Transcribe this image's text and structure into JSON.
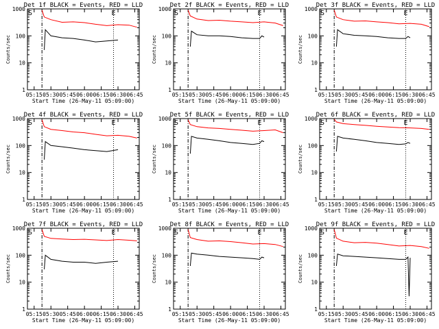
{
  "colors": {
    "events": "#000000",
    "lld": "#ff0000",
    "axes": "#000000",
    "background": "#ffffff"
  },
  "chart_data": [
    {
      "type": "line",
      "title": "Det 1f BLACK = Events, RED = LLD",
      "ylabel": "Counts/sec",
      "xlabel": "Start Time (26-May-11 05:09:00)",
      "x_ticks": [
        "05:15",
        "05:30",
        "05:45",
        "06:00",
        "06:15",
        "06:30",
        "06:45"
      ],
      "y_ticks": [
        "1",
        "10",
        "100",
        "1000"
      ],
      "yscale": "log",
      "ylim": [
        1,
        1000
      ],
      "xlim": [
        "05:09",
        "06:49"
      ],
      "markers": [
        {
          "label": "S",
          "time": "05:09"
        },
        {
          "label": "E",
          "time": "06:26"
        }
      ],
      "dash_dot_line": "05:22",
      "dotted_lines": [
        "06:26"
      ],
      "series": [
        {
          "name": "Events",
          "color": "#000000",
          "times": [
            "05:24",
            "05:25",
            "05:30",
            "05:40",
            "05:50",
            "06:00",
            "06:10",
            "06:20",
            "06:30"
          ],
          "values": [
            30,
            170,
            100,
            85,
            80,
            70,
            60,
            65,
            70
          ]
        },
        {
          "name": "LLD",
          "color": "#ff0000",
          "times": [
            "05:22",
            "05:24",
            "05:30",
            "05:40",
            "05:50",
            "06:00",
            "06:10",
            "06:20",
            "06:30",
            "06:40",
            "06:47"
          ],
          "values": [
            900,
            500,
            400,
            320,
            330,
            310,
            270,
            240,
            260,
            250,
            210
          ]
        }
      ]
    },
    {
      "type": "line",
      "title": "Det 2f BLACK = Events, RED = LLD",
      "ylabel": "Counts/sec",
      "xlabel": "Start Time (26-May-11 05:09:00)",
      "x_ticks": [
        "05:15",
        "05:30",
        "05:45",
        "06:00",
        "06:15",
        "06:30",
        "06:45"
      ],
      "y_ticks": [
        "1",
        "10",
        "100",
        "1000"
      ],
      "yscale": "log",
      "ylim": [
        1,
        1000
      ],
      "xlim": [
        "05:09",
        "06:49"
      ],
      "markers": [
        {
          "label": "S",
          "time": "05:09"
        },
        {
          "label": "E",
          "time": "06:26"
        }
      ],
      "dash_dot_line": "05:22",
      "dotted_lines": [
        "06:26"
      ],
      "series": [
        {
          "name": "Events",
          "color": "#000000",
          "times": [
            "05:24",
            "05:25",
            "05:30",
            "05:40",
            "05:50",
            "06:00",
            "06:10",
            "06:20",
            "06:26",
            "06:28",
            "06:30"
          ],
          "values": [
            40,
            150,
            110,
            100,
            100,
            95,
            85,
            80,
            80,
            100,
            90
          ]
        },
        {
          "name": "LLD",
          "color": "#ff0000",
          "times": [
            "05:22",
            "05:24",
            "05:30",
            "05:40",
            "05:50",
            "06:00",
            "06:10",
            "06:20",
            "06:30",
            "06:40",
            "06:47"
          ],
          "values": [
            900,
            550,
            420,
            370,
            380,
            350,
            330,
            310,
            330,
            300,
            240
          ]
        }
      ]
    },
    {
      "type": "line",
      "title": "Det 3f BLACK = Events, RED = LLD",
      "ylabel": "Counts/sec",
      "xlabel": "Start Time (26-May-11 05:09:00)",
      "x_ticks": [
        "05:15",
        "05:30",
        "05:45",
        "06:00",
        "06:15",
        "06:30",
        "06:45"
      ],
      "y_ticks": [
        "1",
        "10",
        "100",
        "1000"
      ],
      "yscale": "log",
      "ylim": [
        1,
        1000
      ],
      "xlim": [
        "05:09",
        "06:49"
      ],
      "markers": [
        {
          "label": "S",
          "time": "05:09"
        },
        {
          "label": "E",
          "time": "06:26"
        }
      ],
      "dash_dot_line": "05:22",
      "dotted_lines": [
        "06:26"
      ],
      "series": [
        {
          "name": "Events",
          "color": "#000000",
          "times": [
            "05:24",
            "05:25",
            "05:30",
            "05:40",
            "05:50",
            "06:00",
            "06:10",
            "06:20",
            "06:26",
            "06:28",
            "06:30"
          ],
          "values": [
            40,
            170,
            120,
            105,
            100,
            95,
            85,
            80,
            80,
            95,
            85
          ]
        },
        {
          "name": "LLD",
          "color": "#ff0000",
          "times": [
            "05:22",
            "05:24",
            "05:30",
            "05:40",
            "05:50",
            "06:00",
            "06:10",
            "06:20",
            "06:30",
            "06:40",
            "06:47"
          ],
          "values": [
            900,
            500,
            400,
            350,
            360,
            330,
            310,
            280,
            290,
            270,
            220
          ]
        }
      ]
    },
    {
      "type": "line",
      "title": "Det 4f BLACK = Events, RED = LLD",
      "ylabel": "Counts/sec",
      "xlabel": "Start Time (26-May-11 05:09:00)",
      "x_ticks": [
        "05:15",
        "05:30",
        "05:45",
        "06:00",
        "06:15",
        "06:30",
        "06:45"
      ],
      "y_ticks": [
        "1",
        "10",
        "100",
        "1000"
      ],
      "yscale": "log",
      "ylim": [
        1,
        1000
      ],
      "xlim": [
        "05:09",
        "06:49"
      ],
      "markers": [
        {
          "label": "S",
          "time": "05:09"
        },
        {
          "label": "E",
          "time": "06:26"
        }
      ],
      "dash_dot_line": "05:22",
      "dotted_lines": [
        "06:26"
      ],
      "series": [
        {
          "name": "Events",
          "color": "#000000",
          "times": [
            "05:24",
            "05:25",
            "05:30",
            "05:40",
            "05:50",
            "06:00",
            "06:10",
            "06:20",
            "06:30"
          ],
          "values": [
            30,
            140,
            100,
            90,
            80,
            70,
            65,
            60,
            70
          ]
        },
        {
          "name": "LLD",
          "color": "#ff0000",
          "times": [
            "05:22",
            "05:24",
            "05:30",
            "05:40",
            "05:50",
            "06:00",
            "06:10",
            "06:20",
            "06:30",
            "06:40",
            "06:47"
          ],
          "values": [
            900,
            500,
            400,
            360,
            320,
            300,
            260,
            230,
            240,
            220,
            190
          ]
        }
      ]
    },
    {
      "type": "line",
      "title": "Det 5f BLACK = Events, RED = LLD",
      "ylabel": "Counts/sec",
      "xlabel": "Start Time (26-May-11 05:09:00)",
      "x_ticks": [
        "05:15",
        "05:30",
        "05:45",
        "06:00",
        "06:15",
        "06:30",
        "06:45"
      ],
      "y_ticks": [
        "1",
        "10",
        "100",
        "1000"
      ],
      "yscale": "log",
      "ylim": [
        1,
        1000
      ],
      "xlim": [
        "05:09",
        "06:49"
      ],
      "markers": [
        {
          "label": "S",
          "time": "05:09"
        },
        {
          "label": "E",
          "time": "06:26"
        }
      ],
      "dash_dot_line": "05:22",
      "dotted_lines": [
        "06:26"
      ],
      "series": [
        {
          "name": "Events",
          "color": "#000000",
          "times": [
            "05:24",
            "05:25",
            "05:30",
            "05:40",
            "05:50",
            "06:00",
            "06:10",
            "06:20",
            "06:26",
            "06:28",
            "06:30"
          ],
          "values": [
            50,
            220,
            190,
            170,
            150,
            130,
            120,
            110,
            120,
            150,
            140
          ]
        },
        {
          "name": "LLD",
          "color": "#ff0000",
          "times": [
            "05:22",
            "05:24",
            "05:30",
            "05:40",
            "05:50",
            "06:00",
            "06:10",
            "06:20",
            "06:30",
            "06:40",
            "06:47"
          ],
          "values": [
            900,
            600,
            500,
            450,
            430,
            400,
            370,
            340,
            360,
            380,
            300
          ]
        }
      ]
    },
    {
      "type": "line",
      "title": "Det 6f BLACK = Events, RED = LLD",
      "ylabel": "Counts/sec",
      "xlabel": "Start Time (26-May-11 05:09:00)",
      "x_ticks": [
        "05:15",
        "05:30",
        "05:45",
        "06:00",
        "06:15",
        "06:30",
        "06:45"
      ],
      "y_ticks": [
        "1",
        "10",
        "100",
        "1000"
      ],
      "yscale": "log",
      "ylim": [
        1,
        1000
      ],
      "xlim": [
        "05:09",
        "06:49"
      ],
      "markers": [
        {
          "label": "S",
          "time": "05:09"
        },
        {
          "label": "E",
          "time": "06:26"
        }
      ],
      "dash_dot_line": "05:22",
      "dotted_lines": [
        "06:26"
      ],
      "series": [
        {
          "name": "Events",
          "color": "#000000",
          "times": [
            "05:24",
            "05:25",
            "05:30",
            "05:40",
            "05:50",
            "06:00",
            "06:10",
            "06:20",
            "06:26",
            "06:28",
            "06:30"
          ],
          "values": [
            60,
            220,
            190,
            170,
            150,
            130,
            120,
            110,
            115,
            130,
            120
          ]
        },
        {
          "name": "LLD",
          "color": "#ff0000",
          "times": [
            "05:22",
            "05:24",
            "05:30",
            "05:40",
            "05:50",
            "06:00",
            "06:10",
            "06:20",
            "06:30",
            "06:40",
            "06:47"
          ],
          "values": [
            950,
            750,
            650,
            600,
            560,
            520,
            490,
            460,
            450,
            430,
            400
          ]
        }
      ]
    },
    {
      "type": "line",
      "title": "Det 7f BLACK = Events, RED = LLD",
      "ylabel": "Counts/sec",
      "xlabel": "Start Time (26-May-11 05:09:00)",
      "x_ticks": [
        "05:15",
        "05:30",
        "05:45",
        "06:00",
        "06:15",
        "06:30",
        "06:45"
      ],
      "y_ticks": [
        "1",
        "10",
        "100",
        "1000"
      ],
      "yscale": "log",
      "ylim": [
        1,
        1000
      ],
      "xlim": [
        "05:09",
        "06:49"
      ],
      "markers": [
        {
          "label": "S",
          "time": "05:09"
        },
        {
          "label": "E",
          "time": "06:26"
        }
      ],
      "dash_dot_line": "05:22",
      "dotted_lines": [
        "06:26"
      ],
      "series": [
        {
          "name": "Events",
          "color": "#000000",
          "times": [
            "05:24",
            "05:25",
            "05:30",
            "05:40",
            "05:50",
            "06:00",
            "06:10",
            "06:20",
            "06:30"
          ],
          "values": [
            30,
            100,
            70,
            60,
            55,
            55,
            50,
            55,
            60
          ]
        },
        {
          "name": "LLD",
          "color": "#ff0000",
          "times": [
            "05:22",
            "05:24",
            "05:30",
            "05:40",
            "05:50",
            "06:00",
            "06:10",
            "06:20",
            "06:30",
            "06:40",
            "06:47"
          ],
          "values": [
            900,
            500,
            420,
            400,
            380,
            390,
            370,
            350,
            380,
            360,
            340
          ]
        }
      ]
    },
    {
      "type": "line",
      "title": "Det 8f BLACK = Events, RED = LLD",
      "ylabel": "Counts/sec",
      "xlabel": "Start Time (26-May-11 05:09:00)",
      "x_ticks": [
        "05:15",
        "05:30",
        "05:45",
        "06:00",
        "06:15",
        "06:30",
        "06:45"
      ],
      "y_ticks": [
        "1",
        "10",
        "100",
        "1000"
      ],
      "yscale": "log",
      "ylim": [
        1,
        1000
      ],
      "xlim": [
        "05:09",
        "06:49"
      ],
      "markers": [
        {
          "label": "S",
          "time": "05:09"
        },
        {
          "label": "E",
          "time": "06:26"
        }
      ],
      "dash_dot_line": "05:22",
      "dotted_lines": [
        "06:26"
      ],
      "series": [
        {
          "name": "Events",
          "color": "#000000",
          "times": [
            "05:24",
            "05:25",
            "05:30",
            "05:40",
            "05:50",
            "06:00",
            "06:10",
            "06:20",
            "06:26",
            "06:28",
            "06:30"
          ],
          "values": [
            40,
            120,
            110,
            100,
            90,
            85,
            80,
            75,
            70,
            85,
            80
          ]
        },
        {
          "name": "LLD",
          "color": "#ff0000",
          "times": [
            "05:22",
            "05:24",
            "05:30",
            "05:40",
            "05:50",
            "06:00",
            "06:10",
            "06:20",
            "06:30",
            "06:40",
            "06:47"
          ],
          "values": [
            900,
            450,
            380,
            330,
            340,
            320,
            290,
            260,
            270,
            250,
            210
          ]
        }
      ]
    },
    {
      "type": "line",
      "title": "Det 9f BLACK = Events, RED = LLD",
      "ylabel": "Counts/sec",
      "xlabel": "Start Time (26-May-11 05:09:00)",
      "x_ticks": [
        "05:15",
        "05:30",
        "05:45",
        "06:00",
        "06:15",
        "06:30",
        "06:45"
      ],
      "y_ticks": [
        "1",
        "10",
        "100",
        "1000"
      ],
      "yscale": "log",
      "ylim": [
        1,
        1000
      ],
      "xlim": [
        "05:09",
        "06:49"
      ],
      "markers": [
        {
          "label": "S",
          "time": "05:09"
        },
        {
          "label": "E",
          "time": "06:26"
        }
      ],
      "dash_dot_line": "05:22",
      "dotted_lines": [
        "06:26"
      ],
      "series": [
        {
          "name": "Events",
          "color": "#000000",
          "times": [
            "05:24",
            "05:25",
            "05:30",
            "05:40",
            "05:50",
            "06:00",
            "06:10",
            "06:20",
            "06:26",
            "06:28",
            "06:29",
            "06:30"
          ],
          "values": [
            40,
            110,
            95,
            90,
            85,
            80,
            75,
            70,
            70,
            85,
            3,
            80
          ]
        },
        {
          "name": "LLD",
          "color": "#ff0000",
          "times": [
            "05:22",
            "05:24",
            "05:30",
            "05:40",
            "05:50",
            "06:00",
            "06:10",
            "06:20",
            "06:30",
            "06:40",
            "06:47"
          ],
          "values": [
            900,
            430,
            330,
            290,
            300,
            280,
            250,
            220,
            230,
            210,
            180
          ]
        }
      ]
    }
  ]
}
